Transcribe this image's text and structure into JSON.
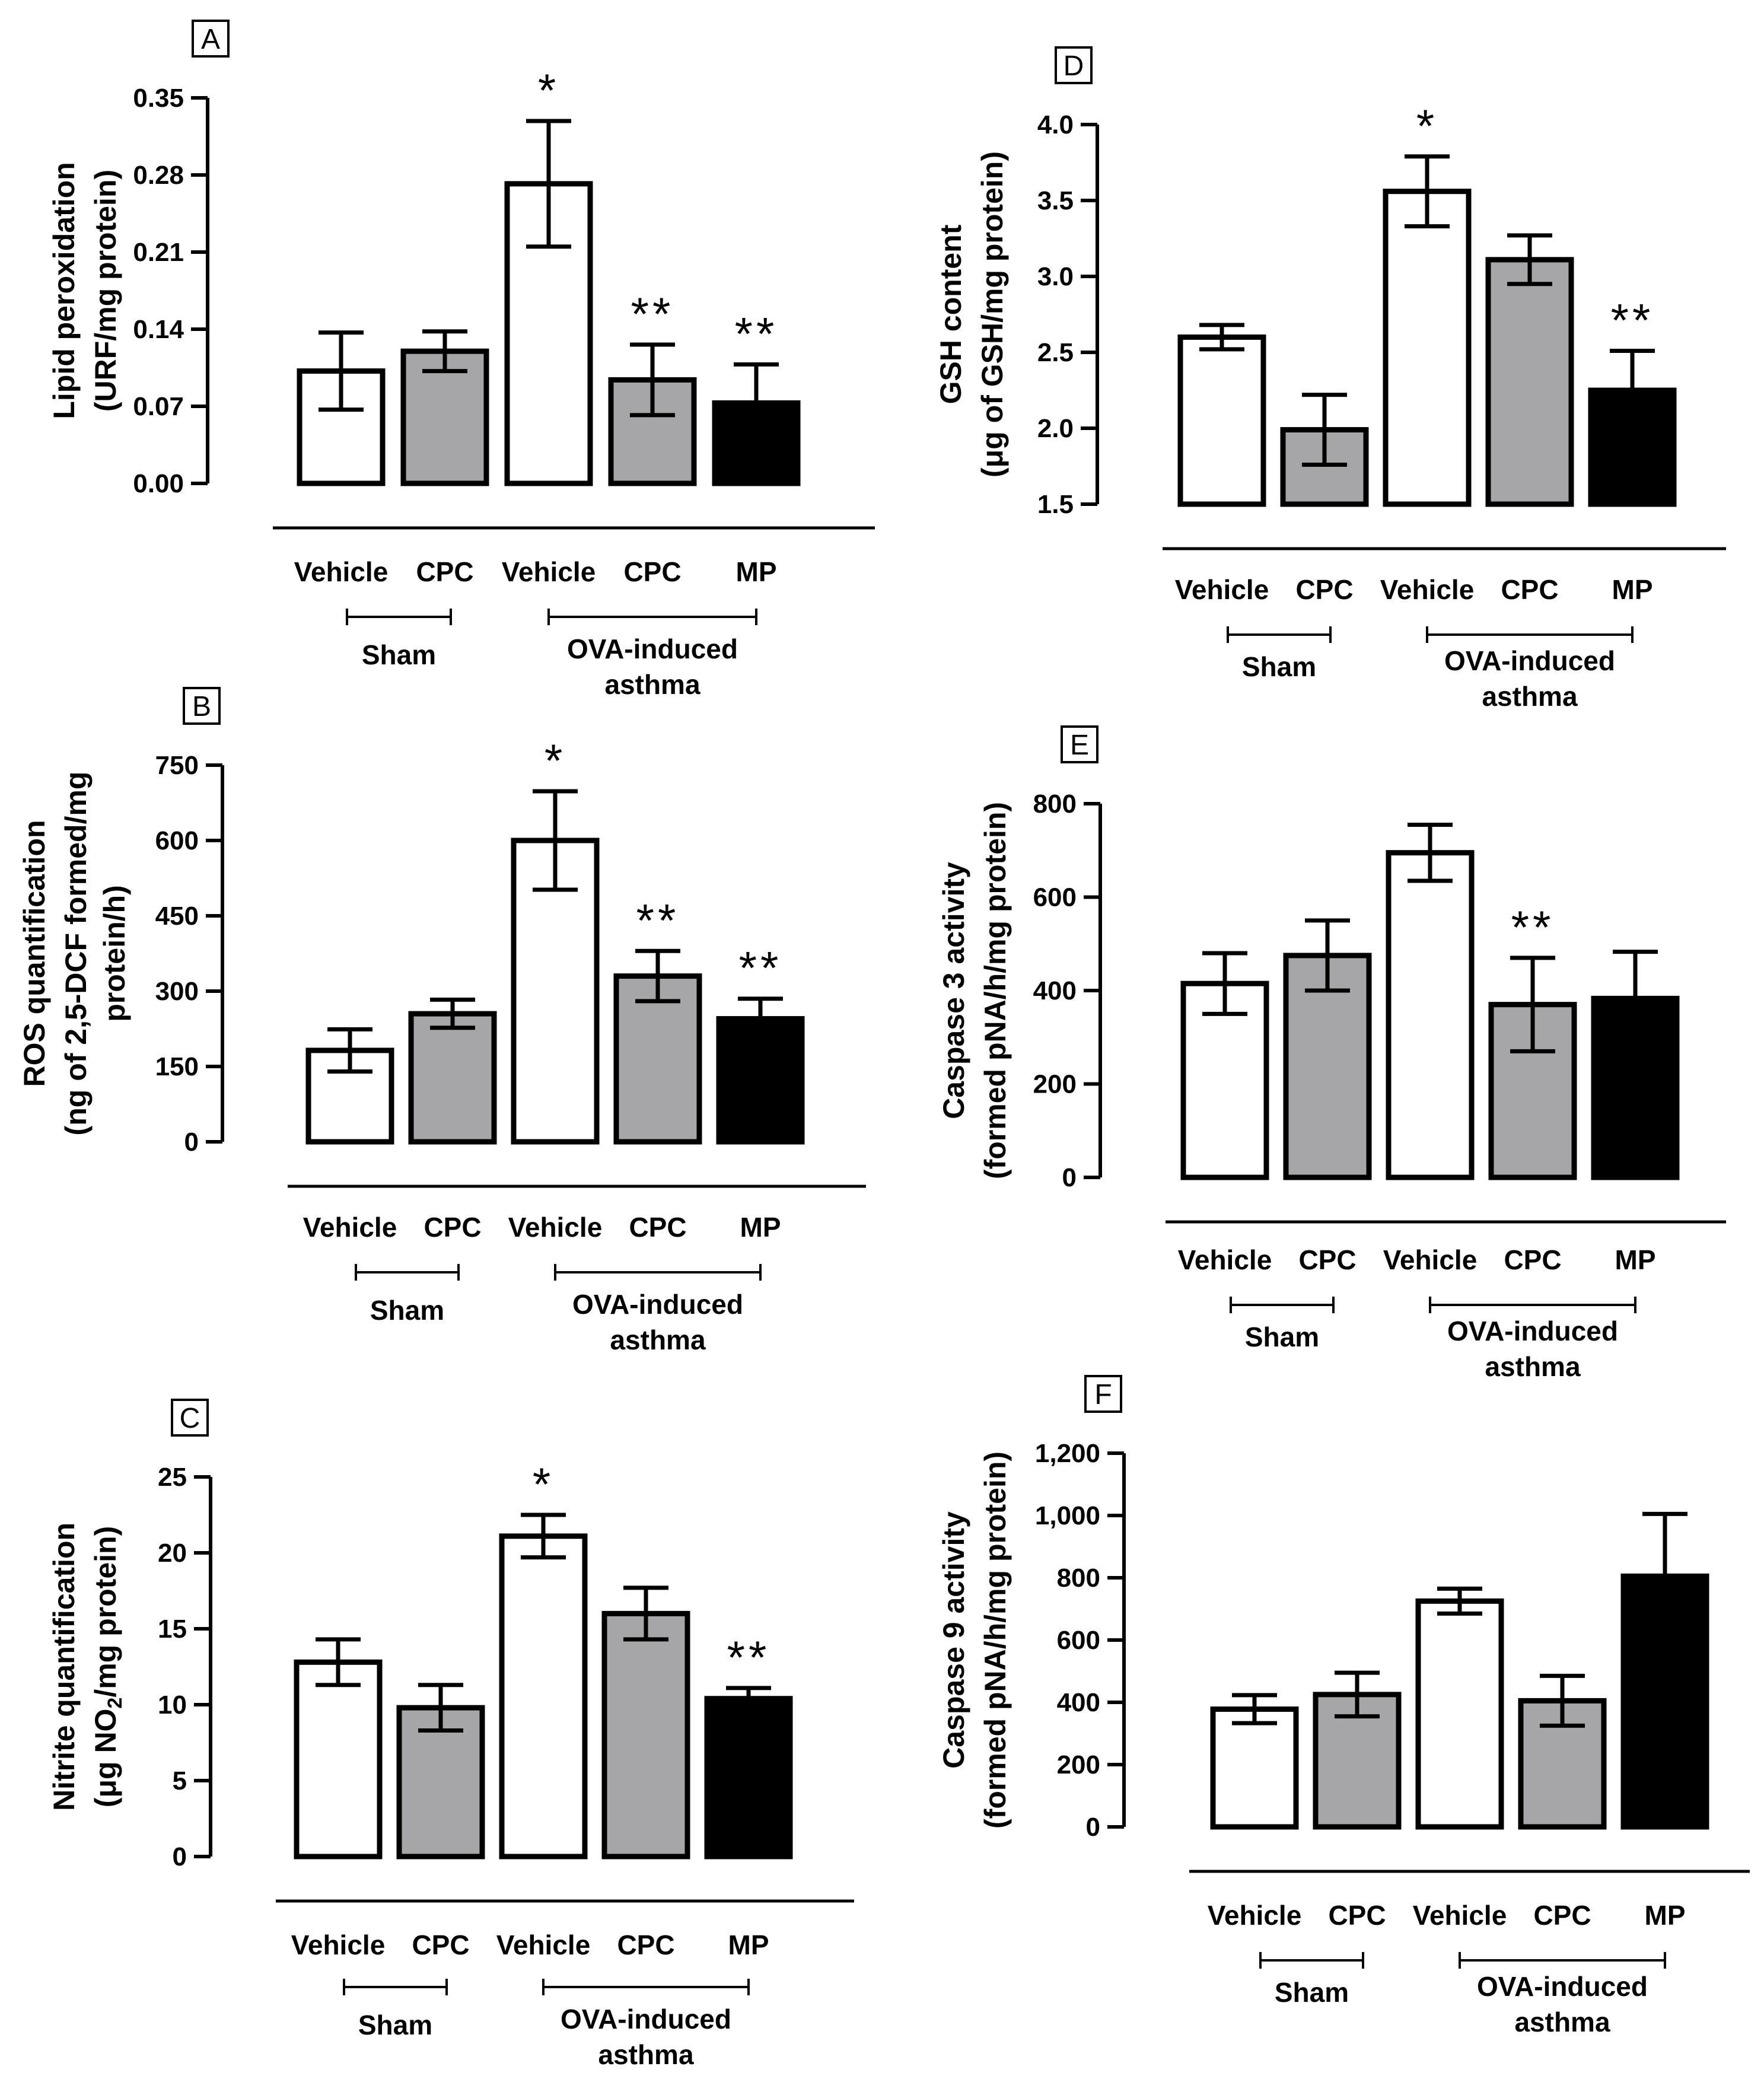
{
  "colors": {
    "white_fill": "#ffffff",
    "gray_fill": "#a6a6a8",
    "black_fill": "#000000",
    "ink": "#000000"
  },
  "groups": {
    "sham": "Sham",
    "ova_line1": "OVA-induced",
    "ova_line2": "asthma"
  },
  "chart_data": [
    {
      "panel": "A",
      "type": "bar",
      "ylabel_line1": "Lipid peroxidation",
      "ylabel_line2": "(URF/mg protein)",
      "ylim": [
        0,
        0.35
      ],
      "yticks": [
        "0.00",
        "0.07",
        "0.14",
        "0.21",
        "0.28",
        "0.35"
      ],
      "categories": [
        "Vehicle",
        "CPC",
        "Vehicle",
        "CPC",
        "MP"
      ],
      "fills": [
        "white",
        "gray",
        "white",
        "gray",
        "black"
      ],
      "values": [
        0.102,
        0.12,
        0.272,
        0.094,
        0.073
      ],
      "errors": [
        0.035,
        0.018,
        0.057,
        0.032,
        0.035
      ],
      "annotations": [
        "",
        "",
        "*",
        "**",
        "**"
      ]
    },
    {
      "panel": "B",
      "type": "bar",
      "ylabel_line1": "ROS quantification",
      "ylabel_line2": "(ng of 2,5-DCF formed/mg",
      "ylabel_line3": "protein/h)",
      "ylim": [
        0,
        750
      ],
      "yticks": [
        "0",
        "150",
        "300",
        "450",
        "600",
        "750"
      ],
      "categories": [
        "Vehicle",
        "CPC",
        "Vehicle",
        "CPC",
        "MP"
      ],
      "fills": [
        "white",
        "gray",
        "white",
        "gray",
        "black"
      ],
      "values": [
        182,
        255,
        600,
        330,
        245
      ],
      "errors": [
        42,
        28,
        98,
        50,
        40
      ],
      "annotations": [
        "",
        "",
        "*",
        "**",
        "**"
      ]
    },
    {
      "panel": "C",
      "type": "bar",
      "ylabel_line1": "Nitrite quantification",
      "ylabel_line2_pre": "(μg NO",
      "ylabel_line2_sub": "2",
      "ylabel_line2_post": "/mg protein)",
      "ylim": [
        0,
        25
      ],
      "yticks": [
        "0",
        "5",
        "10",
        "15",
        "20",
        "25"
      ],
      "categories": [
        "Vehicle",
        "CPC",
        "Vehicle",
        "CPC",
        "MP"
      ],
      "fills": [
        "white",
        "gray",
        "white",
        "gray",
        "black"
      ],
      "values": [
        12.8,
        9.8,
        21.1,
        16.0,
        10.4
      ],
      "errors": [
        1.5,
        1.5,
        1.4,
        1.7,
        0.7
      ],
      "annotations": [
        "",
        "",
        "*",
        "",
        "**"
      ]
    },
    {
      "panel": "D",
      "type": "bar",
      "ylabel_line1": "GSH content",
      "ylabel_line2": "(μg of GSH/mg protein)",
      "ylim": [
        1.5,
        4.0
      ],
      "yticks": [
        "1.5",
        "2.0",
        "2.5",
        "3.0",
        "3.5",
        "4.0"
      ],
      "categories": [
        "Vehicle",
        "CPC",
        "Vehicle",
        "CPC",
        "MP"
      ],
      "fills": [
        "white",
        "gray",
        "white",
        "gray",
        "black"
      ],
      "values": [
        2.6,
        1.99,
        3.56,
        3.11,
        2.25
      ],
      "errors": [
        0.08,
        0.23,
        0.23,
        0.16,
        0.26
      ],
      "annotations": [
        "",
        "",
        "*",
        "",
        "**"
      ]
    },
    {
      "panel": "E",
      "type": "bar",
      "ylabel_line1": "Caspase 3 activity",
      "ylabel_line2": "(formed pNA/h/mg protein)",
      "ylim": [
        0,
        800
      ],
      "yticks": [
        "0",
        "200",
        "400",
        "600",
        "800"
      ],
      "categories": [
        "Vehicle",
        "CPC",
        "Vehicle",
        "CPC",
        "MP"
      ],
      "fills": [
        "white",
        "gray",
        "white",
        "gray",
        "black"
      ],
      "values": [
        415,
        475,
        695,
        370,
        383
      ],
      "errors": [
        65,
        75,
        60,
        100,
        100
      ],
      "annotations": [
        "",
        "",
        "",
        "**",
        ""
      ]
    },
    {
      "panel": "F",
      "type": "bar",
      "ylabel_line1": "Caspase 9 activity",
      "ylabel_line2": "(formed pNA/h/mg protein)",
      "ylim": [
        0,
        1200
      ],
      "yticks": [
        "0",
        "200",
        "400",
        "600",
        "800",
        "1,000",
        "1,200"
      ],
      "categories": [
        "Vehicle",
        "CPC",
        "Vehicle",
        "CPC",
        "MP"
      ],
      "fills": [
        "white",
        "gray",
        "white",
        "gray",
        "black"
      ],
      "values": [
        378,
        425,
        725,
        405,
        805
      ],
      "errors": [
        45,
        70,
        40,
        80,
        200
      ],
      "annotations": [
        "",
        "",
        "",
        "",
        ""
      ]
    }
  ]
}
